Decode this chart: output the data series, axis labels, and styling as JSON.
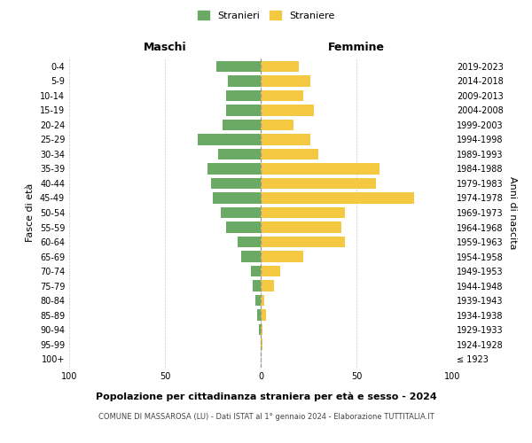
{
  "age_groups": [
    "100+",
    "95-99",
    "90-94",
    "85-89",
    "80-84",
    "75-79",
    "70-74",
    "65-69",
    "60-64",
    "55-59",
    "50-54",
    "45-49",
    "40-44",
    "35-39",
    "30-34",
    "25-29",
    "20-24",
    "15-19",
    "10-14",
    "5-9",
    "0-4"
  ],
  "birth_years": [
    "≤ 1923",
    "1924-1928",
    "1929-1933",
    "1934-1938",
    "1939-1943",
    "1944-1948",
    "1949-1953",
    "1954-1958",
    "1959-1963",
    "1964-1968",
    "1969-1973",
    "1974-1978",
    "1979-1983",
    "1984-1988",
    "1989-1993",
    "1994-1998",
    "1999-2003",
    "2004-2008",
    "2009-2013",
    "2014-2018",
    "2019-2023"
  ],
  "maschi": [
    0,
    0,
    1,
    2,
    3,
    4,
    5,
    10,
    12,
    18,
    21,
    25,
    26,
    28,
    22,
    33,
    20,
    18,
    18,
    17,
    23
  ],
  "femmine": [
    0,
    1,
    1,
    3,
    2,
    7,
    10,
    22,
    44,
    42,
    44,
    80,
    60,
    62,
    30,
    26,
    17,
    28,
    22,
    26,
    20
  ],
  "male_color": "#6aaa64",
  "female_color": "#f5c842",
  "bg_color": "#ffffff",
  "grid_color": "#cccccc",
  "title": "Popolazione per cittadinanza straniera per età e sesso - 2024",
  "subtitle": "COMUNE DI MASSAROSA (LU) - Dati ISTAT al 1° gennaio 2024 - Elaborazione TUTTITALIA.IT",
  "xlabel_left": "Maschi",
  "xlabel_right": "Femmine",
  "ylabel_left": "Fasce di età",
  "ylabel_right": "Anni di nascita",
  "legend_male": "Stranieri",
  "legend_female": "Straniere",
  "xlim": 100,
  "bar_height": 0.75
}
